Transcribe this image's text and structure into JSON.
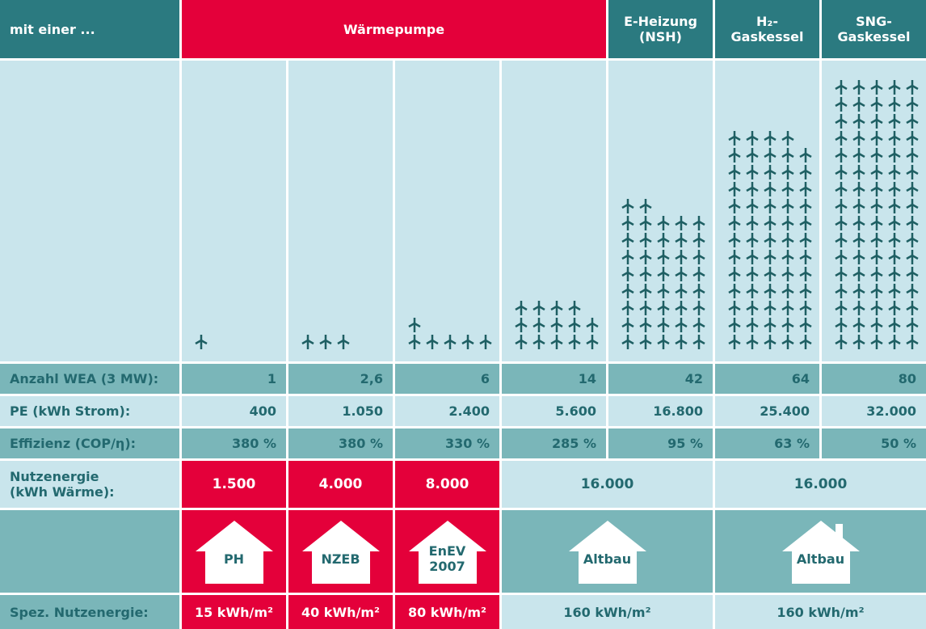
{
  "header": {
    "label": "mit einer ...",
    "columns": [
      [
        "Wärmepumpe"
      ],
      [
        "E-Heizung",
        "(NSH)"
      ],
      [
        "H₂-",
        "Gaskessel"
      ],
      [
        "SNG-",
        "Gaskessel"
      ]
    ]
  },
  "anzahl": {
    "label": "Anzahl WEA (3 MW):",
    "values": [
      1,
      2.6,
      6,
      14,
      42,
      64,
      80
    ],
    "value_labels": [
      "1",
      "2,6",
      "6",
      "14",
      "42",
      "64",
      "80"
    ]
  },
  "pe": {
    "label": "PE (kWh Strom):",
    "values": [
      "400",
      "1.050",
      "2.400",
      "5.600",
      "16.800",
      "25.400",
      "32.000"
    ]
  },
  "effizienz": {
    "label": "Effizienz (COP/η):",
    "values": [
      "380 %",
      "380 %",
      "330 %",
      "285 %",
      "95 %",
      "63 %",
      "50 %"
    ]
  },
  "nutzenergie": {
    "label": [
      "Nutzenergie",
      "(kWh Wärme):"
    ],
    "values": [
      "1.500",
      "4.000",
      "8.000",
      "16.000",
      "16.000"
    ]
  },
  "houses": [
    [
      "PH"
    ],
    [
      "NZEB"
    ],
    [
      "EnEV",
      "2007"
    ],
    [
      "Altbau"
    ],
    [
      "Altbau"
    ]
  ],
  "spez": {
    "label": "Spez. Nutzenergie:",
    "values": [
      "15 kWh/m²",
      "40 kWh/m²",
      "80 kWh/m²",
      "160 kWh/m²",
      "160 kWh/m²"
    ]
  }
}
